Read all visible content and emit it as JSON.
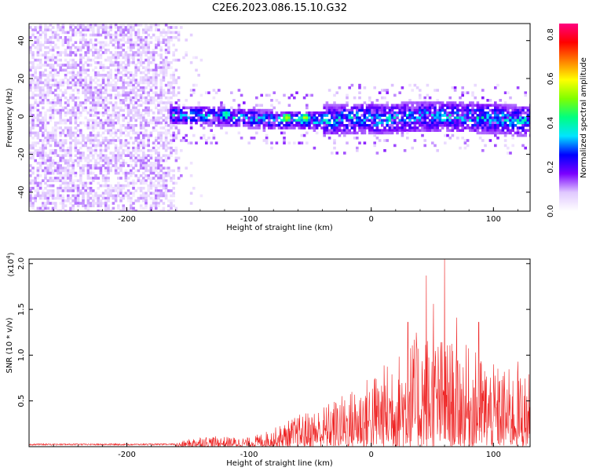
{
  "title": "C2E6.2023.086.15.10.G32",
  "chart_data": [
    {
      "type": "heatmap",
      "xlabel": "Height of straight line (km)",
      "ylabel": "Frequency (Hz)",
      "xlim": [
        -280,
        130
      ],
      "ylim": [
        -50,
        49
      ],
      "xticks": [
        -200,
        -100,
        0,
        100
      ],
      "yticks": [
        -40,
        -20,
        0,
        20,
        40
      ],
      "colorbar": {
        "label": "Normalized spectral amplitude",
        "range": [
          0,
          0.85
        ],
        "ticks": [
          "0.0",
          "0.2",
          "0.4",
          "0.6",
          "0.8"
        ],
        "tick_values": [
          0,
          0.2,
          0.4,
          0.6,
          0.8
        ],
        "colors": [
          "#ffffff",
          "#e0c8ff",
          "#7a00ff",
          "#0000ff",
          "#00e5ff",
          "#00ff80",
          "#80ff00",
          "#ffff00",
          "#ff8000",
          "#ff0000",
          "#ff0080"
        ]
      },
      "regions": [
        {
          "x": [
            -280,
            -155
          ],
          "y": [
            -50,
            49
          ],
          "amplitude": 0.1,
          "pattern": "broadband noise"
        },
        {
          "x": [
            -165,
            130
          ],
          "y": [
            -8,
            8
          ],
          "amplitude": 0.35,
          "pattern": "band near 0 Hz"
        }
      ],
      "hotspots": [
        {
          "x": -70,
          "y": 0,
          "amplitude": 0.65
        },
        {
          "x": -55,
          "y": 0,
          "amplitude": 0.62
        },
        {
          "x": -120,
          "y": 2,
          "amplitude": 0.5
        }
      ]
    },
    {
      "type": "line",
      "xlabel": "Height of straight line (km)",
      "ylabel": "SNR (10 * v/v)",
      "y_multiplier": "(x10",
      "y_multiplier_exp": "4",
      "y_multiplier_close": ")",
      "xlim": [
        -280,
        130
      ],
      "ylim": [
        0,
        20500
      ],
      "xticks": [
        -200,
        -100,
        0,
        100
      ],
      "yticks": [
        5000,
        10000,
        15000,
        20000
      ],
      "ytick_labels": [
        "0.5",
        "1.0",
        "1.5",
        "2.0"
      ],
      "color": "#ee2222",
      "envelope": [
        {
          "x": -280,
          "y": 300
        },
        {
          "x": -160,
          "y": 400
        },
        {
          "x": -140,
          "y": 1200
        },
        {
          "x": -100,
          "y": 1000
        },
        {
          "x": -80,
          "y": 2000
        },
        {
          "x": -60,
          "y": 3500
        },
        {
          "x": -40,
          "y": 4500
        },
        {
          "x": -20,
          "y": 6000
        },
        {
          "x": 0,
          "y": 8000
        },
        {
          "x": 20,
          "y": 10000
        },
        {
          "x": 40,
          "y": 13000
        },
        {
          "x": 60,
          "y": 12000
        },
        {
          "x": 80,
          "y": 11000
        },
        {
          "x": 100,
          "y": 9000
        },
        {
          "x": 130,
          "y": 8000
        }
      ],
      "peaks": [
        {
          "x": 17,
          "y": 7900
        },
        {
          "x": 30,
          "y": 13600
        },
        {
          "x": 45,
          "y": 18700
        },
        {
          "x": 51,
          "y": 15600
        },
        {
          "x": 60,
          "y": 20500
        },
        {
          "x": 70,
          "y": 14100
        },
        {
          "x": 88,
          "y": 13600
        },
        {
          "x": 120,
          "y": 9300
        }
      ]
    }
  ]
}
